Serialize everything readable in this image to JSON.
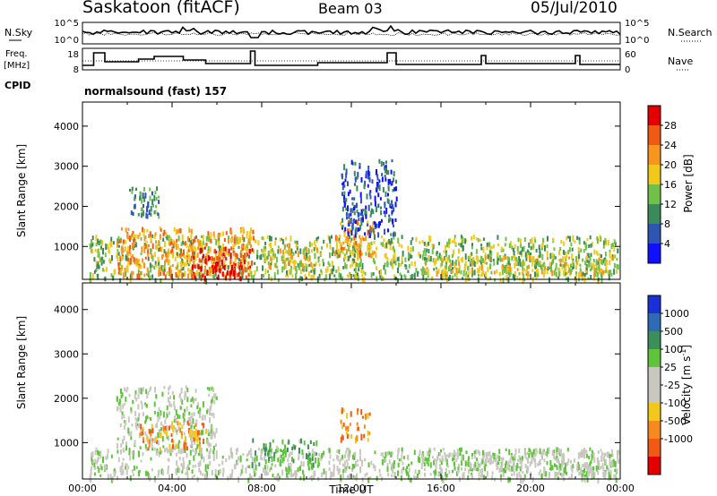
{
  "header": {
    "station": "Saskatoon (fitACF)",
    "beam": "Beam 03",
    "date": "05/Jul/2010"
  },
  "top_strip": {
    "left_label": "N.Sky",
    "left_ticks": [
      "10^5",
      "10^0"
    ],
    "right_label": "N.Search",
    "right_ticks": [
      "10^5",
      "10^0"
    ]
  },
  "freq_strip": {
    "left_label_1": "Freq.",
    "left_label_2": "[MHz]",
    "left_ticks": [
      "18",
      "8"
    ],
    "right_label": "Nave",
    "right_ticks": [
      "60",
      "0"
    ]
  },
  "cpid": {
    "label": "CPID",
    "value": "normalsound (fast) 157"
  },
  "chart_data": [
    {
      "type": "heatmap",
      "name": "power",
      "ylabel": "Slant Range [km]",
      "ylim": [
        180,
        4600
      ],
      "yticks": [
        1000,
        2000,
        3000,
        4000
      ],
      "xlim": [
        0,
        24
      ],
      "xtick_labels": [
        "00:00",
        "04:00",
        "08:00",
        "12:00",
        "16:00",
        "20:00",
        "00:00"
      ],
      "colorbar": {
        "label": "Power [dB]",
        "ticks": [
          "4",
          "8",
          "12",
          "16",
          "20",
          "24",
          "28"
        ],
        "colors": [
          "#1010ff",
          "#2f55b4",
          "#3b8a5a",
          "#6fc14a",
          "#f2c81a",
          "#f7951e",
          "#f05a14",
          "#e50000"
        ]
      },
      "regions": [
        {
          "t0": 0.3,
          "t1": 24.0,
          "r0": 200,
          "r1": 1300,
          "level": 3
        },
        {
          "t0": 1.5,
          "t1": 7.6,
          "r0": 300,
          "r1": 1500,
          "level": 5
        },
        {
          "t0": 4.8,
          "t1": 7.6,
          "r0": 250,
          "r1": 1000,
          "level": 7
        },
        {
          "t0": 8.0,
          "t1": 10.5,
          "r0": 500,
          "r1": 1100,
          "level": 4
        },
        {
          "t0": 11.2,
          "t1": 13.0,
          "r0": 800,
          "r1": 1700,
          "level": 5
        },
        {
          "t0": 15.0,
          "t1": 23.5,
          "r0": 350,
          "r1": 800,
          "level": 4
        },
        {
          "t0": 2.0,
          "t1": 3.5,
          "r0": 1800,
          "r1": 2500,
          "level": 2
        },
        {
          "t0": 11.5,
          "t1": 14.0,
          "r0": 1300,
          "r1": 3200,
          "level": 1
        }
      ]
    },
    {
      "type": "heatmap",
      "name": "velocity",
      "ylabel": "Slant Range [km]",
      "ylim": [
        180,
        4600
      ],
      "yticks": [
        1000,
        2000,
        3000,
        4000
      ],
      "xlim": [
        0,
        24
      ],
      "xlabel": "Time UT",
      "xtick_labels": [
        "00:00",
        "04:00",
        "08:00",
        "12:00",
        "16:00",
        "20:00",
        "00:00"
      ],
      "colorbar": {
        "label": "Velocity [m s",
        "label_sup": "-1",
        "label_end": "]",
        "ticks": [
          "1000",
          "500",
          "100",
          "25",
          "-25",
          "-100",
          "-500",
          "-1000"
        ],
        "colors": [
          "#1a2fd6",
          "#2f6ab4",
          "#3c8f5c",
          "#5fc43a",
          "#c8c8c0",
          "#c8c8c0",
          "#f2c81a",
          "#f78a1e",
          "#f05a14",
          "#e50000"
        ]
      },
      "regions": [
        {
          "t0": 0.3,
          "t1": 24.0,
          "r0": 200,
          "r1": 900,
          "level": 4
        },
        {
          "t0": 1.5,
          "t1": 6.0,
          "r0": 800,
          "r1": 2300,
          "level": 4
        },
        {
          "t0": 2.5,
          "t1": 5.5,
          "r0": 900,
          "r1": 1500,
          "level": 7
        },
        {
          "t0": 7.5,
          "t1": 10.5,
          "r0": 500,
          "r1": 1100,
          "level": 3
        },
        {
          "t0": 11.5,
          "t1": 12.8,
          "r0": 1100,
          "r1": 1800,
          "level": 7
        },
        {
          "t0": 15.0,
          "t1": 24.0,
          "r0": 300,
          "r1": 900,
          "level": 4
        }
      ]
    }
  ]
}
